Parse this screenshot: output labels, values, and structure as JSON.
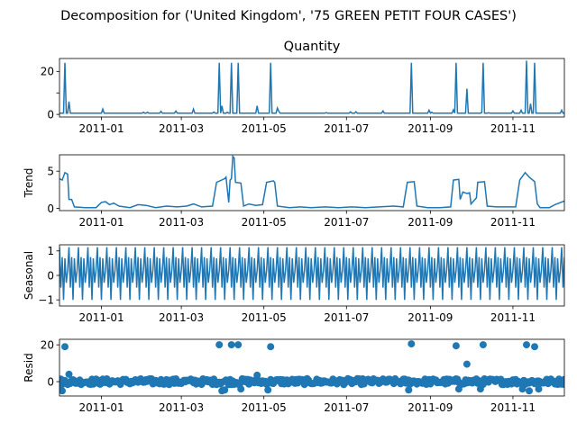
{
  "figure": {
    "suptitle": "Decomposition for ('United Kingdom', '75 GREEN PETIT FOUR CASES')"
  },
  "chart_data": [
    {
      "type": "line",
      "panel": "observed",
      "title": "Quantity",
      "ylabel": "",
      "xlim": [
        "2010-12-01",
        "2011-12-09"
      ],
      "ylim": [
        -1.2,
        26
      ],
      "yticks": [
        0,
        10,
        20
      ],
      "ytick_labels": [
        "0",
        "",
        "20"
      ],
      "xtick_labels": [
        "2011-01",
        "2011-03",
        "2011-05",
        "2011-07",
        "2011-09",
        "2011-11"
      ],
      "color": "#1f77b4",
      "baseline": 0.6,
      "spikes": [
        {
          "x": "2010-12-05",
          "y": 24
        },
        {
          "x": "2010-12-08",
          "y": 6
        },
        {
          "x": "2011-01-02",
          "y": 2.5
        },
        {
          "x": "2011-03-10",
          "y": 2.5
        },
        {
          "x": "2011-03-29",
          "y": 24
        },
        {
          "x": "2011-03-31",
          "y": 4
        },
        {
          "x": "2011-04-07",
          "y": 24
        },
        {
          "x": "2011-04-12",
          "y": 24
        },
        {
          "x": "2011-04-26",
          "y": 4
        },
        {
          "x": "2011-05-06",
          "y": 24
        },
        {
          "x": "2011-05-11",
          "y": 3
        },
        {
          "x": "2011-08-18",
          "y": 24
        },
        {
          "x": "2011-08-31",
          "y": 2
        },
        {
          "x": "2011-09-20",
          "y": 24
        },
        {
          "x": "2011-09-28",
          "y": 12
        },
        {
          "x": "2011-10-10",
          "y": 24
        },
        {
          "x": "2011-11-11",
          "y": 25
        },
        {
          "x": "2011-11-14",
          "y": 5
        },
        {
          "x": "2011-11-17",
          "y": 24
        },
        {
          "x": "2011-12-07",
          "y": 2
        }
      ]
    },
    {
      "type": "line",
      "panel": "trend",
      "title": "",
      "ylabel": "Trend",
      "xlim": [
        "2010-12-01",
        "2011-12-09"
      ],
      "ylim": [
        -0.3,
        7.2
      ],
      "yticks": [
        0,
        5
      ],
      "ytick_labels": [
        "0",
        "5"
      ],
      "xtick_labels": [
        "2011-01",
        "2011-03",
        "2011-05",
        "2011-07",
        "2011-09",
        "2011-11"
      ],
      "color": "#1f77b4",
      "points": [
        [
          "2010-12-01",
          4.0
        ],
        [
          "2010-12-03",
          3.8
        ],
        [
          "2010-12-05",
          4.8
        ],
        [
          "2010-12-07",
          4.6
        ],
        [
          "2010-12-08",
          1.2
        ],
        [
          "2010-12-10",
          1.2
        ],
        [
          "2010-12-12",
          0.2
        ],
        [
          "2010-12-20",
          0.1
        ],
        [
          "2010-12-28",
          0.1
        ],
        [
          "2011-01-01",
          0.8
        ],
        [
          "2011-01-04",
          0.9
        ],
        [
          "2011-01-07",
          0.5
        ],
        [
          "2011-01-10",
          0.7
        ],
        [
          "2011-01-14",
          0.3
        ],
        [
          "2011-01-22",
          0.1
        ],
        [
          "2011-01-28",
          0.5
        ],
        [
          "2011-02-03",
          0.4
        ],
        [
          "2011-02-10",
          0.1
        ],
        [
          "2011-02-18",
          0.3
        ],
        [
          "2011-02-26",
          0.2
        ],
        [
          "2011-03-05",
          0.3
        ],
        [
          "2011-03-10",
          0.6
        ],
        [
          "2011-03-16",
          0.2
        ],
        [
          "2011-03-24",
          0.3
        ],
        [
          "2011-03-27",
          3.5
        ],
        [
          "2011-04-02",
          4.0
        ],
        [
          "2011-04-03",
          4.2
        ],
        [
          "2011-04-05",
          0.8
        ],
        [
          "2011-04-06",
          3.8
        ],
        [
          "2011-04-07",
          4.0
        ],
        [
          "2011-04-08",
          7.0
        ],
        [
          "2011-04-09",
          6.8
        ],
        [
          "2011-04-10",
          3.5
        ],
        [
          "2011-04-14",
          3.4
        ],
        [
          "2011-04-16",
          0.3
        ],
        [
          "2011-04-20",
          0.6
        ],
        [
          "2011-04-25",
          0.4
        ],
        [
          "2011-04-30",
          0.5
        ],
        [
          "2011-05-03",
          3.5
        ],
        [
          "2011-05-08",
          3.7
        ],
        [
          "2011-05-09",
          3.5
        ],
        [
          "2011-05-11",
          0.3
        ],
        [
          "2011-05-20",
          0.1
        ],
        [
          "2011-05-28",
          0.2
        ],
        [
          "2011-06-05",
          0.1
        ],
        [
          "2011-06-15",
          0.2
        ],
        [
          "2011-06-25",
          0.1
        ],
        [
          "2011-07-05",
          0.2
        ],
        [
          "2011-07-15",
          0.1
        ],
        [
          "2011-07-25",
          0.2
        ],
        [
          "2011-08-05",
          0.3
        ],
        [
          "2011-08-12",
          0.2
        ],
        [
          "2011-08-15",
          3.5
        ],
        [
          "2011-08-20",
          3.6
        ],
        [
          "2011-08-22",
          0.3
        ],
        [
          "2011-08-30",
          0.1
        ],
        [
          "2011-09-08",
          0.1
        ],
        [
          "2011-09-16",
          0.2
        ],
        [
          "2011-09-18",
          3.8
        ],
        [
          "2011-09-22",
          3.9
        ],
        [
          "2011-09-23",
          1.2
        ],
        [
          "2011-09-25",
          2.2
        ],
        [
          "2011-09-28",
          2.0
        ],
        [
          "2011-09-30",
          2.1
        ],
        [
          "2011-10-01",
          0.6
        ],
        [
          "2011-10-05",
          1.4
        ],
        [
          "2011-10-06",
          3.5
        ],
        [
          "2011-10-11",
          3.6
        ],
        [
          "2011-10-13",
          0.3
        ],
        [
          "2011-10-20",
          0.2
        ],
        [
          "2011-10-28",
          0.2
        ],
        [
          "2011-11-03",
          0.2
        ],
        [
          "2011-11-06",
          3.8
        ],
        [
          "2011-11-10",
          4.8
        ],
        [
          "2011-11-13",
          4.2
        ],
        [
          "2011-11-17",
          3.6
        ],
        [
          "2011-11-19",
          0.6
        ],
        [
          "2011-11-21",
          0.1
        ],
        [
          "2011-11-28",
          0.1
        ],
        [
          "2011-12-02",
          0.5
        ],
        [
          "2011-12-09",
          1.0
        ]
      ]
    },
    {
      "type": "line",
      "panel": "seasonal",
      "title": "",
      "ylabel": "Seasonal",
      "xlim": [
        "2010-12-01",
        "2011-12-09"
      ],
      "ylim": [
        -1.25,
        1.25
      ],
      "yticks": [
        -1,
        0,
        1
      ],
      "ytick_labels": [
        "−1",
        "0",
        "1"
      ],
      "xtick_labels": [
        "2011-01",
        "2011-03",
        "2011-05",
        "2011-07",
        "2011-09",
        "2011-11"
      ],
      "color": "#1f77b4",
      "period_days": 7,
      "pattern": [
        1.15,
        -0.5,
        0.75,
        -1.0,
        0.7,
        -0.3,
        0.2
      ]
    },
    {
      "type": "scatter",
      "panel": "resid",
      "title": "",
      "ylabel": "Resid",
      "xlim": [
        "2010-12-01",
        "2011-12-09"
      ],
      "ylim": [
        -7.8,
        23
      ],
      "yticks": [
        0,
        20
      ],
      "ytick_labels": [
        "0",
        "20"
      ],
      "xtick_labels": [
        "2011-01",
        "2011-03",
        "2011-05",
        "2011-07",
        "2011-09",
        "2011-11"
      ],
      "color": "#1f77b4",
      "baseline": 0,
      "outliers": [
        {
          "x": "2010-12-05",
          "y": 19
        },
        {
          "x": "2010-12-08",
          "y": 4
        },
        {
          "x": "2011-03-29",
          "y": 20
        },
        {
          "x": "2011-04-07",
          "y": 20
        },
        {
          "x": "2011-04-12",
          "y": 20
        },
        {
          "x": "2011-04-26",
          "y": 3.5
        },
        {
          "x": "2011-05-06",
          "y": 19
        },
        {
          "x": "2011-08-18",
          "y": 20.5
        },
        {
          "x": "2011-09-20",
          "y": 19.5
        },
        {
          "x": "2011-09-28",
          "y": 9.5
        },
        {
          "x": "2011-10-10",
          "y": 20
        },
        {
          "x": "2011-11-11",
          "y": 20
        },
        {
          "x": "2011-11-17",
          "y": 19
        },
        {
          "x": "2010-12-01",
          "y": -4
        },
        {
          "x": "2010-12-03",
          "y": -5
        },
        {
          "x": "2011-03-31",
          "y": -5
        },
        {
          "x": "2011-04-02",
          "y": -4.5
        },
        {
          "x": "2011-04-14",
          "y": -4
        },
        {
          "x": "2011-05-04",
          "y": -4.5
        },
        {
          "x": "2011-08-16",
          "y": -4.5
        },
        {
          "x": "2011-09-22",
          "y": -4
        },
        {
          "x": "2011-10-08",
          "y": -4
        },
        {
          "x": "2011-11-08",
          "y": -4
        },
        {
          "x": "2011-11-13",
          "y": -5
        },
        {
          "x": "2011-11-20",
          "y": -4
        }
      ]
    }
  ]
}
